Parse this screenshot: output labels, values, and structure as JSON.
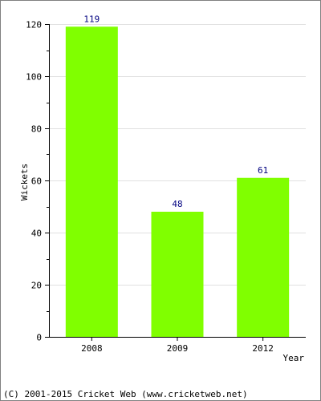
{
  "colors": {
    "bar": "#80ff00",
    "value_label": "#000080",
    "axis": "#000000",
    "grid": "#e0e0e0",
    "border": "#808080",
    "background": "#ffffff"
  },
  "chart_data": {
    "type": "bar",
    "categories": [
      "2008",
      "2009",
      "2012"
    ],
    "values": [
      119,
      48,
      61
    ],
    "xlabel": "Year",
    "ylabel": "Wickets",
    "ylim": [
      0,
      120
    ],
    "yticks": [
      0,
      20,
      40,
      60,
      80,
      100,
      120
    ],
    "grid": true,
    "data_labels": true
  },
  "footer": {
    "copyright": "(C) 2001-2015 Cricket Web (www.cricketweb.net)"
  }
}
